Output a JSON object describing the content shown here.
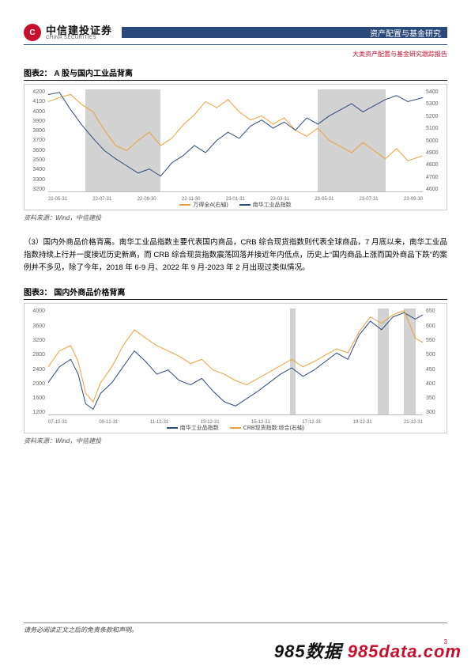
{
  "header": {
    "company_cn": "中信建投证券",
    "company_en": "CHINA SECURITIES",
    "banner": "资产配置与基金研究",
    "subhead": "大类资产配置与基金研究跟踪报告"
  },
  "fig2": {
    "title": "图表2：   A 股与国内工业品背离",
    "source": "资料来源：Wind，中信建投",
    "y_left_ticks": [
      "4200",
      "4100",
      "4000",
      "3900",
      "3800",
      "3700",
      "3600",
      "3500",
      "3400",
      "3300",
      "3200"
    ],
    "y_right_ticks": [
      "5400",
      "5300",
      "5200",
      "5100",
      "5000",
      "4900",
      "4800",
      "4700",
      "4600"
    ],
    "x_ticks": [
      "22-05-31",
      "22-07-31",
      "22-09-30",
      "22-11-30",
      "23-01-31",
      "23-03-31",
      "23-05-31",
      "23-07-31",
      "23-09-30"
    ],
    "legend": [
      {
        "label": "万得全A(右轴)",
        "color": "#e9a13b"
      },
      {
        "label": "南华工业品指数",
        "color": "#2a4a7a"
      }
    ],
    "shades": [
      {
        "left_pct": 10,
        "width_pct": 20
      },
      {
        "left_pct": 72,
        "width_pct": 18
      }
    ],
    "series": {
      "orange": {
        "color": "#e9a13b",
        "points": [
          [
            0,
            12
          ],
          [
            3,
            8
          ],
          [
            6,
            5
          ],
          [
            9,
            15
          ],
          [
            12,
            22
          ],
          [
            15,
            40
          ],
          [
            18,
            55
          ],
          [
            21,
            60
          ],
          [
            24,
            50
          ],
          [
            27,
            42
          ],
          [
            30,
            55
          ],
          [
            33,
            48
          ],
          [
            36,
            35
          ],
          [
            39,
            25
          ],
          [
            42,
            12
          ],
          [
            45,
            18
          ],
          [
            48,
            10
          ],
          [
            51,
            22
          ],
          [
            54,
            30
          ],
          [
            57,
            26
          ],
          [
            60,
            34
          ],
          [
            63,
            28
          ],
          [
            66,
            40
          ],
          [
            69,
            46
          ],
          [
            72,
            38
          ],
          [
            75,
            50
          ],
          [
            78,
            56
          ],
          [
            81,
            62
          ],
          [
            84,
            52
          ],
          [
            87,
            60
          ],
          [
            90,
            68
          ],
          [
            93,
            58
          ],
          [
            96,
            70
          ],
          [
            100,
            65
          ]
        ]
      },
      "blue": {
        "color": "#2a4a7a",
        "points": [
          [
            0,
            5
          ],
          [
            3,
            3
          ],
          [
            6,
            20
          ],
          [
            9,
            35
          ],
          [
            12,
            48
          ],
          [
            15,
            60
          ],
          [
            18,
            68
          ],
          [
            21,
            75
          ],
          [
            24,
            82
          ],
          [
            27,
            78
          ],
          [
            30,
            85
          ],
          [
            33,
            72
          ],
          [
            36,
            65
          ],
          [
            39,
            55
          ],
          [
            42,
            62
          ],
          [
            45,
            50
          ],
          [
            48,
            42
          ],
          [
            51,
            48
          ],
          [
            54,
            36
          ],
          [
            57,
            30
          ],
          [
            60,
            38
          ],
          [
            63,
            32
          ],
          [
            66,
            40
          ],
          [
            69,
            28
          ],
          [
            72,
            34
          ],
          [
            75,
            26
          ],
          [
            78,
            20
          ],
          [
            81,
            14
          ],
          [
            84,
            22
          ],
          [
            87,
            16
          ],
          [
            90,
            10
          ],
          [
            93,
            6
          ],
          [
            96,
            12
          ],
          [
            100,
            8
          ]
        ]
      }
    }
  },
  "body": {
    "text": "（3）国内外商品价格背离。南华工业品指数主要代表国内商品，CRB 综合现货指数则代表全球商品，7 月底以来，南华工业品指数持续上行并一度接近历史新高，而 CRB 综合现货指数震荡回落并接近年内低点，历史上“国内商品上涨而国外商品下跌”的案例并不多见，除了今年，2018 年 6-9 月、2022 年 9 月-2023 年 2 月出现过类似情况。"
  },
  "fig3": {
    "title": "图表3：   国内外商品价格背离",
    "source": "资料来源：Wind，中信建投",
    "y_left_ticks": [
      "4000",
      "3600",
      "3200",
      "2800",
      "2400",
      "2000",
      "1600",
      "1200"
    ],
    "y_right_ticks": [
      "650",
      "600",
      "550",
      "500",
      "450",
      "400",
      "350",
      "300"
    ],
    "x_ticks": [
      "07-12-31",
      "09-12-31",
      "11-12-31",
      "13-12-31",
      "15-12-31",
      "17-12-31",
      "19-12-31",
      "21-12-31"
    ],
    "legend": [
      {
        "label": "南华工业品指数",
        "color": "#2a4a7a"
      },
      {
        "label": "CRB现货指数:综合(右轴)",
        "color": "#e9a13b"
      }
    ],
    "shades": [
      {
        "left_pct": 64.5,
        "width_pct": 1.5
      },
      {
        "left_pct": 88,
        "width_pct": 3
      },
      {
        "left_pct": 95,
        "width_pct": 3
      }
    ],
    "series": {
      "blue": {
        "color": "#2a4a7a",
        "points": [
          [
            0,
            70
          ],
          [
            3,
            55
          ],
          [
            6,
            48
          ],
          [
            8,
            62
          ],
          [
            10,
            90
          ],
          [
            12,
            95
          ],
          [
            14,
            80
          ],
          [
            17,
            70
          ],
          [
            20,
            55
          ],
          [
            23,
            40
          ],
          [
            26,
            50
          ],
          [
            29,
            62
          ],
          [
            32,
            58
          ],
          [
            35,
            68
          ],
          [
            38,
            72
          ],
          [
            41,
            66
          ],
          [
            44,
            78
          ],
          [
            47,
            88
          ],
          [
            50,
            92
          ],
          [
            53,
            85
          ],
          [
            56,
            78
          ],
          [
            59,
            70
          ],
          [
            62,
            62
          ],
          [
            65,
            56
          ],
          [
            68,
            64
          ],
          [
            71,
            58
          ],
          [
            74,
            50
          ],
          [
            77,
            42
          ],
          [
            80,
            48
          ],
          [
            83,
            25
          ],
          [
            86,
            12
          ],
          [
            89,
            20
          ],
          [
            92,
            8
          ],
          [
            95,
            4
          ],
          [
            98,
            10
          ],
          [
            100,
            6
          ]
        ]
      },
      "orange": {
        "color": "#e9a13b",
        "points": [
          [
            0,
            55
          ],
          [
            3,
            40
          ],
          [
            6,
            35
          ],
          [
            8,
            50
          ],
          [
            10,
            80
          ],
          [
            12,
            88
          ],
          [
            14,
            70
          ],
          [
            17,
            55
          ],
          [
            20,
            35
          ],
          [
            23,
            20
          ],
          [
            26,
            28
          ],
          [
            29,
            35
          ],
          [
            32,
            40
          ],
          [
            35,
            45
          ],
          [
            38,
            52
          ],
          [
            41,
            48
          ],
          [
            44,
            58
          ],
          [
            47,
            62
          ],
          [
            50,
            68
          ],
          [
            53,
            72
          ],
          [
            56,
            66
          ],
          [
            59,
            60
          ],
          [
            62,
            54
          ],
          [
            65,
            48
          ],
          [
            68,
            55
          ],
          [
            71,
            50
          ],
          [
            74,
            44
          ],
          [
            77,
            38
          ],
          [
            80,
            42
          ],
          [
            83,
            22
          ],
          [
            86,
            8
          ],
          [
            89,
            14
          ],
          [
            92,
            6
          ],
          [
            95,
            2
          ],
          [
            98,
            28
          ],
          [
            100,
            32
          ]
        ]
      }
    }
  },
  "footer": {
    "disclaimer": "请务必阅读正文之后的免责条款和声明。",
    "page_num": "3"
  },
  "watermark": {
    "a": "985数据 ",
    "b": "985data.com"
  }
}
